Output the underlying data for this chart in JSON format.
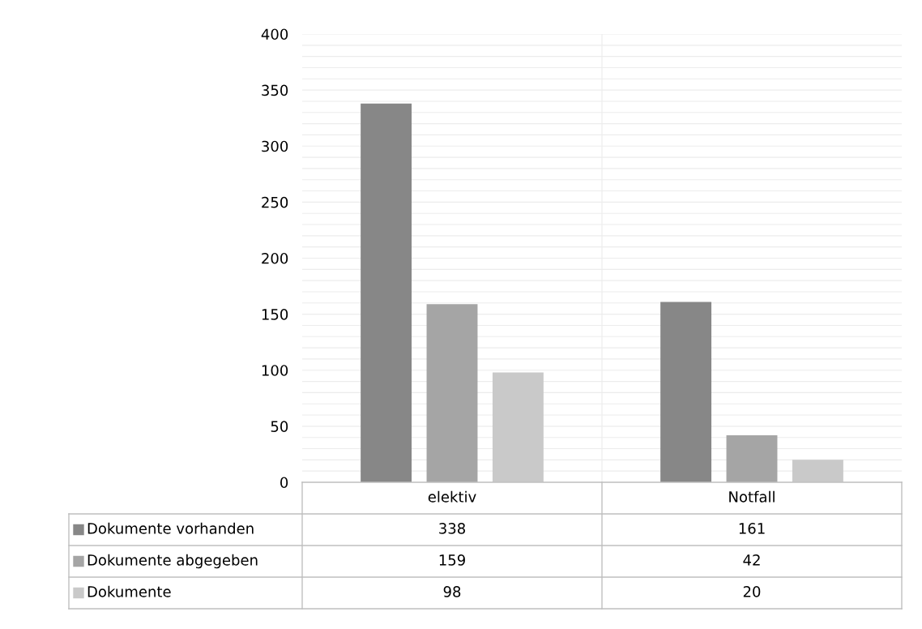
{
  "chart_data": {
    "type": "bar",
    "categories": [
      "elektiv",
      "Notfall"
    ],
    "series": [
      {
        "name": "Dokumente vorhanden",
        "color": "#878787",
        "values": [
          338,
          161
        ]
      },
      {
        "name": "Dokumente abgegeben",
        "color": "#a5a5a5",
        "values": [
          159,
          42
        ]
      },
      {
        "name": "Dokumente",
        "color": "#c9c9c9",
        "values": [
          98,
          20
        ]
      }
    ],
    "ylim": [
      0,
      400
    ],
    "yticks": [
      0,
      50,
      100,
      150,
      200,
      250,
      300,
      350,
      400
    ],
    "grid": true,
    "legend": "bottom left",
    "data_labels": true
  }
}
